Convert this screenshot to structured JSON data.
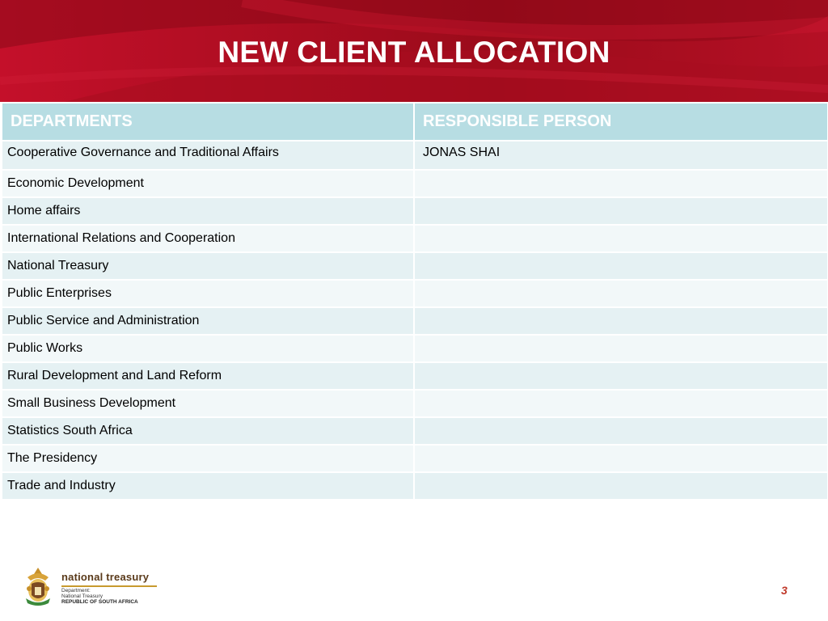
{
  "slide": {
    "title": "NEW CLIENT ALLOCATION",
    "page_number": "3"
  },
  "table": {
    "headers": [
      "DEPARTMENTS",
      "RESPONSIBLE PERSON"
    ],
    "rows": [
      [
        "Cooperative Governance and Traditional Affairs",
        "JONAS SHAI"
      ],
      [
        "Economic Development",
        ""
      ],
      [
        "Home affairs",
        ""
      ],
      [
        "International Relations and Cooperation",
        ""
      ],
      [
        "National Treasury",
        ""
      ],
      [
        "Public Enterprises",
        ""
      ],
      [
        "Public Service and Administration",
        ""
      ],
      [
        "Public Works",
        ""
      ],
      [
        "Rural Development and Land Reform",
        ""
      ],
      [
        "Small Business Development",
        ""
      ],
      [
        "Statistics South Africa",
        ""
      ],
      [
        "The Presidency",
        ""
      ],
      [
        "Trade and Industry",
        ""
      ]
    ]
  },
  "footer": {
    "logo_name": "national treasury",
    "logo_line1": "Department:",
    "logo_line2": "National Treasury",
    "logo_line3": "REPUBLIC OF SOUTH AFRICA"
  },
  "colors": {
    "banner_red": "#b10c1d",
    "header_teal": "#b7dde3",
    "row_light": "#e5f1f3"
  }
}
